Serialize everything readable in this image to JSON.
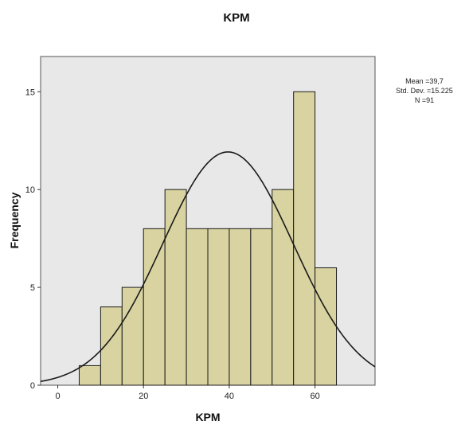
{
  "chart_data": {
    "type": "bar",
    "title": "KPM",
    "xlabel": "KPM",
    "ylabel": "Frequency",
    "xlim": [
      -4,
      74
    ],
    "ylim": [
      0,
      16.8
    ],
    "bin_width": 5,
    "bins": [
      {
        "x0": 5,
        "x1": 10,
        "count": 1
      },
      {
        "x0": 10,
        "x1": 15,
        "count": 4
      },
      {
        "x0": 15,
        "x1": 20,
        "count": 5
      },
      {
        "x0": 20,
        "x1": 25,
        "count": 8
      },
      {
        "x0": 25,
        "x1": 30,
        "count": 10
      },
      {
        "x0": 30,
        "x1": 35,
        "count": 8
      },
      {
        "x0": 35,
        "x1": 40,
        "count": 8
      },
      {
        "x0": 40,
        "x1": 45,
        "count": 8
      },
      {
        "x0": 45,
        "x1": 50,
        "count": 8
      },
      {
        "x0": 50,
        "x1": 55,
        "count": 10
      },
      {
        "x0": 55,
        "x1": 60,
        "count": 15
      },
      {
        "x0": 60,
        "x1": 65,
        "count": 6
      }
    ],
    "x_ticks": [
      0,
      20,
      40,
      60
    ],
    "y_ticks": [
      0,
      5,
      10,
      15
    ],
    "normal_curve": {
      "mean": 39.7,
      "std_dev": 15.225,
      "n": 91
    },
    "stats_text": [
      "Mean =39,7",
      "Std. Dev. =15.225",
      "N =91"
    ],
    "colors": {
      "bar_fill": "#d8d3a0",
      "bar_stroke": "#1a1a1a",
      "plot_background": "#e8e8e8",
      "curve": "#1a1a1a"
    }
  }
}
